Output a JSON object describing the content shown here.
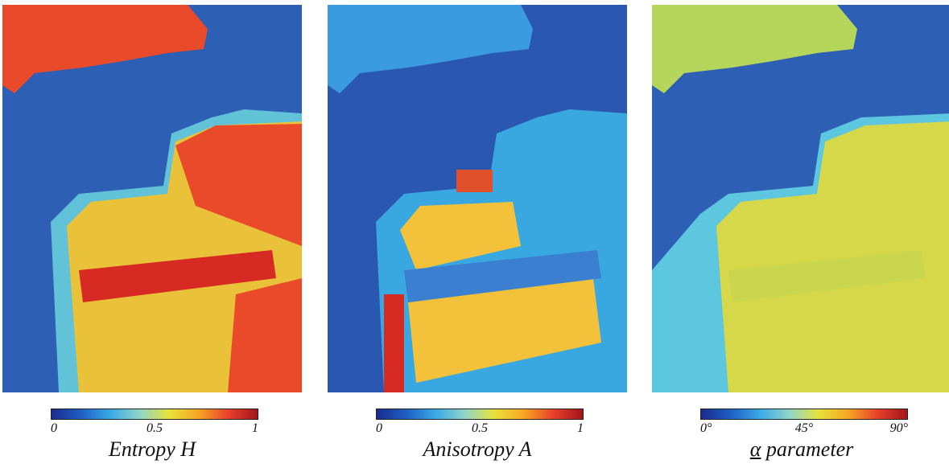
{
  "colormap": {
    "stops": [
      "#1a2b8c",
      "#1f5fc4",
      "#3aa9e6",
      "#8fd6c8",
      "#e8e23a",
      "#f5a623",
      "#e8402a",
      "#a3151b"
    ]
  },
  "panels": [
    {
      "id": "entropy",
      "caption": "Entropy H",
      "ticks": [
        "0",
        "0.5",
        "1"
      ],
      "colors": {
        "water": "#2d5fb5",
        "land_a": "#e84a2a",
        "land_b": "#e9c23a",
        "strip": "#d62a23",
        "edge": "#62c3d8"
      }
    },
    {
      "id": "anisotropy",
      "caption": "Anisotropy A",
      "ticks": [
        "0",
        "0.5",
        "1"
      ],
      "colors": {
        "water": "#2a58b0",
        "land_a": "#3a9be0",
        "land_b": "#f3c23a",
        "strip": "#3a7fd0",
        "edge": "#3aa8e0"
      }
    },
    {
      "id": "alpha",
      "caption_symbol": "α",
      "caption_rest": " parameter",
      "ticks": [
        "0°",
        "45°",
        "90°"
      ],
      "colors": {
        "water": "#2d5fb5",
        "land_a": "#b5d65a",
        "land_b": "#d6d84a",
        "strip": "#c9d64e",
        "edge": "#5ec7e0"
      }
    }
  ]
}
